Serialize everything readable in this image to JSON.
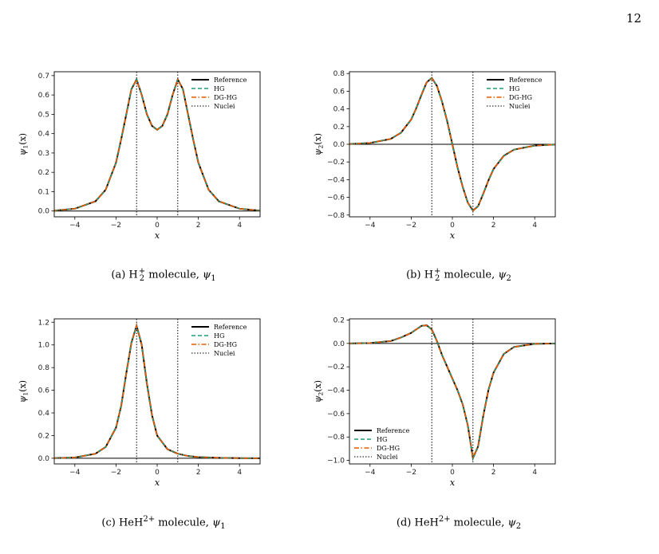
{
  "page_number": "12",
  "colors": {
    "reference": "#000000",
    "hg": "#1b9e77",
    "dg_hg": "#e65c00",
    "nuclei": "#000000"
  },
  "line_styles": {
    "reference": "solid",
    "hg": "dashed",
    "dg_hg": "dashdot",
    "nuclei": "dotted"
  },
  "chart_data": [
    {
      "id": "a",
      "type": "line",
      "caption": {
        "prefix": "(a) H",
        "sub": "2",
        "sup": "+",
        "text": " molecule, ",
        "var": "ψ",
        "var_sub": "1"
      },
      "xlabel": "x",
      "ylabel": "ψ1(x)",
      "xlim": [
        -5,
        5
      ],
      "ylim": [
        -0.03,
        0.72
      ],
      "xticks": [
        -4,
        -2,
        0,
        2,
        4
      ],
      "xtick_labels": [
        "−4",
        "−2",
        "0",
        "2",
        "4"
      ],
      "yticks": [
        0.0,
        0.1,
        0.2,
        0.3,
        0.4,
        0.5,
        0.6,
        0.7
      ],
      "ytick_labels": [
        "0.0",
        "0.1",
        "0.2",
        "0.3",
        "0.4",
        "0.5",
        "0.6",
        "0.7"
      ],
      "nuclei": [
        -1,
        1
      ],
      "legend_position": "top-right",
      "legend": [
        "Reference",
        "HG",
        "DG-HG",
        "Nuclei"
      ],
      "x": [
        -5,
        -4,
        -3,
        -2.5,
        -2,
        -1.75,
        -1.5,
        -1.25,
        -1,
        -0.75,
        -0.5,
        -0.25,
        0,
        0.25,
        0.5,
        0.75,
        1,
        1.25,
        1.5,
        1.75,
        2,
        2.5,
        3,
        4,
        5
      ],
      "series": [
        {
          "name": "Reference",
          "values": [
            0.002,
            0.012,
            0.05,
            0.11,
            0.25,
            0.37,
            0.5,
            0.63,
            0.68,
            0.6,
            0.5,
            0.44,
            0.42,
            0.44,
            0.5,
            0.6,
            0.68,
            0.63,
            0.5,
            0.37,
            0.25,
            0.11,
            0.05,
            0.012,
            0.002
          ]
        }
      ]
    },
    {
      "id": "b",
      "type": "line",
      "caption": {
        "prefix": "(b) H",
        "sub": "2",
        "sup": "+",
        "text": " molecule, ",
        "var": "ψ",
        "var_sub": "2"
      },
      "xlabel": "x",
      "ylabel": "ψ2(x)",
      "xlim": [
        -5,
        5
      ],
      "ylim": [
        -0.82,
        0.82
      ],
      "xticks": [
        -4,
        -2,
        0,
        2,
        4
      ],
      "xtick_labels": [
        "−4",
        "−2",
        "0",
        "2",
        "4"
      ],
      "yticks": [
        -0.8,
        -0.6,
        -0.4,
        -0.2,
        0.0,
        0.2,
        0.4,
        0.6,
        0.8
      ],
      "ytick_labels": [
        "−0.8",
        "−0.6",
        "−0.4",
        "−0.2",
        "0.0",
        "0.2",
        "0.4",
        "0.6",
        "0.8"
      ],
      "nuclei": [
        -1,
        1
      ],
      "legend_position": "top-right",
      "legend": [
        "Reference",
        "HG",
        "DG-HG",
        "Nuclei"
      ],
      "x": [
        -5,
        -4,
        -3,
        -2.5,
        -2,
        -1.75,
        -1.5,
        -1.25,
        -1,
        -0.75,
        -0.5,
        -0.25,
        0,
        0.25,
        0.5,
        0.75,
        1,
        1.25,
        1.5,
        1.75,
        2,
        2.5,
        3,
        4,
        5
      ],
      "series": [
        {
          "name": "Reference",
          "values": [
            0.002,
            0.015,
            0.06,
            0.13,
            0.28,
            0.41,
            0.56,
            0.7,
            0.75,
            0.66,
            0.48,
            0.26,
            0.0,
            -0.26,
            -0.48,
            -0.66,
            -0.75,
            -0.7,
            -0.56,
            -0.41,
            -0.28,
            -0.13,
            -0.06,
            -0.015,
            -0.002
          ]
        }
      ]
    },
    {
      "id": "c",
      "type": "line",
      "caption": {
        "prefix": "(c) HeH",
        "sub": "",
        "sup": "2+",
        "text": " molecule, ",
        "var": "ψ",
        "var_sub": "1"
      },
      "xlabel": "x",
      "ylabel": "ψ1(x)",
      "xlim": [
        -5,
        5
      ],
      "ylim": [
        -0.05,
        1.23
      ],
      "xticks": [
        -4,
        -2,
        0,
        2,
        4
      ],
      "xtick_labels": [
        "−4",
        "−2",
        "0",
        "2",
        "4"
      ],
      "yticks": [
        0.0,
        0.2,
        0.4,
        0.6,
        0.8,
        1.0,
        1.2
      ],
      "ytick_labels": [
        "0.0",
        "0.2",
        "0.4",
        "0.6",
        "0.8",
        "1.0",
        "1.2"
      ],
      "nuclei": [
        -1,
        1
      ],
      "legend_position": "top-right",
      "legend": [
        "Reference",
        "HG",
        "DG-HG",
        "Nuclei"
      ],
      "x": [
        -5,
        -4,
        -3,
        -2.5,
        -2,
        -1.75,
        -1.5,
        -1.25,
        -1,
        -0.75,
        -0.5,
        -0.25,
        0,
        0.5,
        1,
        1.5,
        2,
        3,
        4,
        5
      ],
      "series": [
        {
          "name": "Reference",
          "values": [
            0.001,
            0.006,
            0.04,
            0.1,
            0.27,
            0.46,
            0.75,
            1.02,
            1.17,
            1.0,
            0.66,
            0.38,
            0.2,
            0.08,
            0.04,
            0.02,
            0.01,
            0.004,
            0.001,
            0.0
          ]
        }
      ]
    },
    {
      "id": "d",
      "type": "line",
      "caption": {
        "prefix": "(d) HeH",
        "sub": "",
        "sup": "2+",
        "text": " molecule, ",
        "var": "ψ",
        "var_sub": "2"
      },
      "xlabel": "x",
      "ylabel": "ψ2(x)",
      "xlim": [
        -5,
        5
      ],
      "ylim": [
        -1.03,
        0.21
      ],
      "xticks": [
        -4,
        -2,
        0,
        2,
        4
      ],
      "xtick_labels": [
        "−4",
        "−2",
        "0",
        "2",
        "4"
      ],
      "yticks": [
        -1.0,
        -0.8,
        -0.6,
        -0.4,
        -0.2,
        0.0,
        0.2
      ],
      "ytick_labels": [
        "−1.0",
        "−0.8",
        "−0.6",
        "−0.4",
        "−0.2",
        "0.0",
        "0.2"
      ],
      "nuclei": [
        -1,
        1
      ],
      "legend_position": "bottom-left",
      "legend": [
        "Reference",
        "HG",
        "DG-HG",
        "Nuclei"
      ],
      "x": [
        -5,
        -4,
        -3,
        -2.5,
        -2,
        -1.75,
        -1.5,
        -1.25,
        -1,
        -0.75,
        -0.5,
        -0.25,
        0,
        0.25,
        0.5,
        0.75,
        1,
        1.25,
        1.5,
        1.75,
        2,
        2.5,
        3,
        4,
        5
      ],
      "series": [
        {
          "name": "Reference",
          "values": [
            0.0,
            0.003,
            0.02,
            0.05,
            0.09,
            0.12,
            0.15,
            0.155,
            0.12,
            0.02,
            -0.1,
            -0.2,
            -0.3,
            -0.4,
            -0.52,
            -0.7,
            -0.98,
            -0.88,
            -0.62,
            -0.4,
            -0.25,
            -0.09,
            -0.03,
            -0.004,
            0.0
          ]
        }
      ]
    }
  ]
}
